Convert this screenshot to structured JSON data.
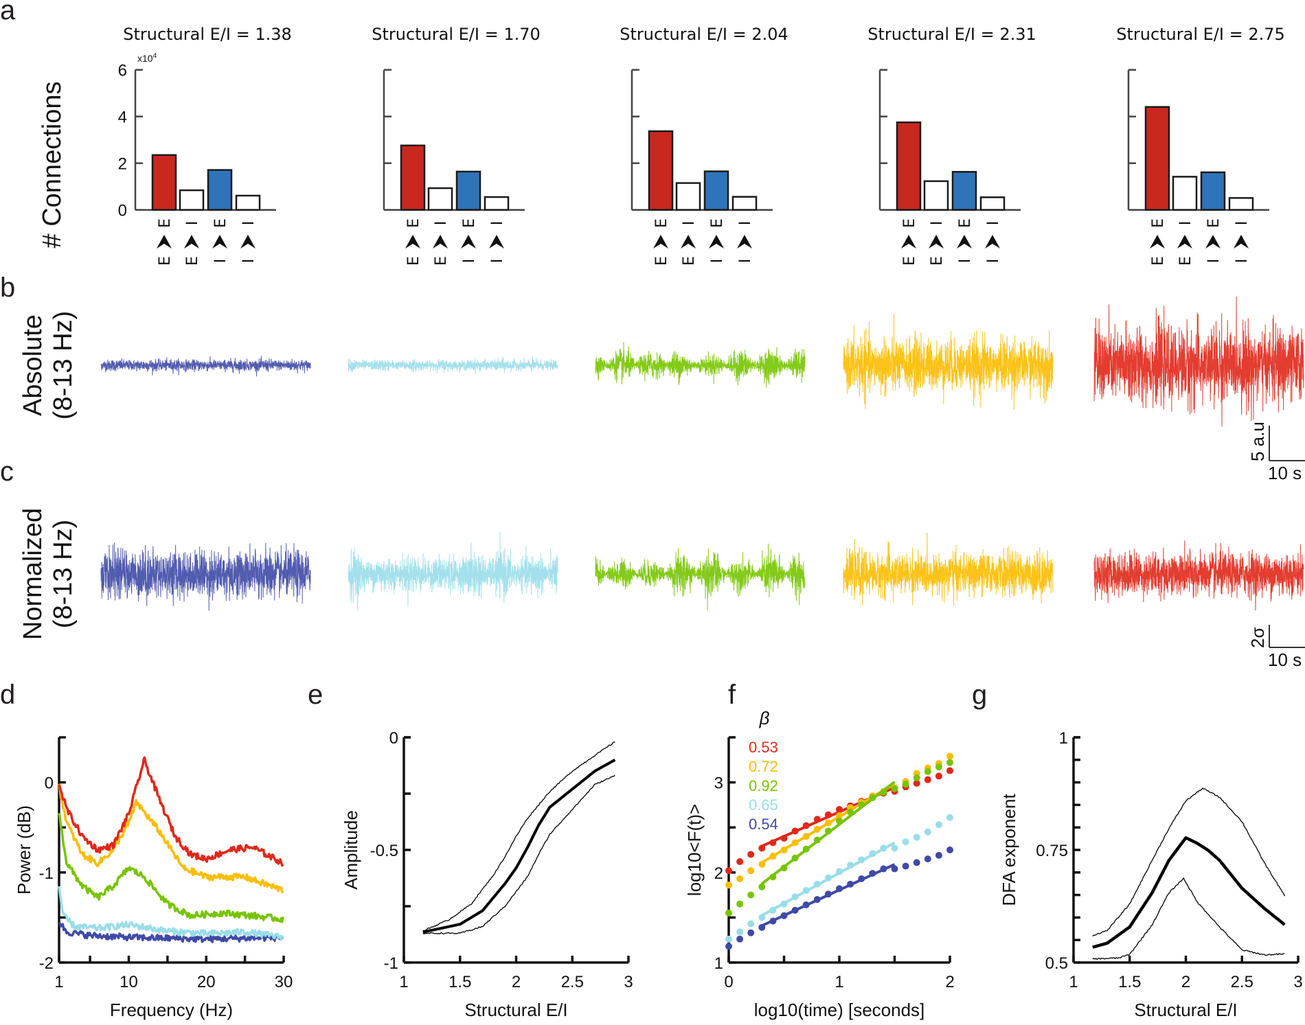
{
  "labels": {
    "panel_letters": [
      "a",
      "b",
      "c",
      "d",
      "e",
      "f",
      "g"
    ],
    "row_b": [
      "Absolute",
      "(8-13 Hz)"
    ],
    "row_c": [
      "Normalized",
      "(8-13 Hz)"
    ],
    "scalebar_b": {
      "vertical": "5 a.u",
      "horizontal": "10 s"
    },
    "scalebar_c": {
      "vertical": "2σ",
      "horizontal": "10 s"
    }
  },
  "colors": {
    "excitatory": "#c8281e",
    "inhibitory": "#2f73b8",
    "other": "#ffffff",
    "series": [
      "#3f4aa6",
      "#99dde9",
      "#77c400",
      "#fbbd00",
      "#e0281a"
    ]
  },
  "chart_data": [
    {
      "id": "a",
      "type": "bar",
      "ylabel": "# Connections",
      "yexponent": "x10",
      "yexponent_power": "4",
      "ylim": [
        0,
        6
      ],
      "yticks": [
        "0",
        "2",
        "4",
        "6"
      ],
      "categories": [
        {
          "from": "E",
          "to": "E"
        },
        {
          "from": "E",
          "to": "I"
        },
        {
          "from": "I",
          "to": "E"
        },
        {
          "from": "I",
          "to": "I"
        }
      ],
      "category_colors": [
        "excitatory",
        "other",
        "inhibitory",
        "other"
      ],
      "subplots": [
        {
          "title": "Structural E/I = 1.38",
          "values": [
            2.35,
            0.84,
            1.71,
            0.61
          ]
        },
        {
          "title": "Structural E/I = 1.70",
          "values": [
            2.76,
            0.93,
            1.64,
            0.55
          ]
        },
        {
          "title": "Structural E/I = 2.04",
          "values": [
            3.37,
            1.15,
            1.65,
            0.56
          ]
        },
        {
          "title": "Structural E/I = 2.31",
          "values": [
            3.75,
            1.23,
            1.63,
            0.54
          ]
        },
        {
          "title": "Structural E/I = 2.75",
          "values": [
            4.41,
            1.42,
            1.61,
            0.51
          ]
        }
      ]
    },
    {
      "id": "b",
      "type": "line",
      "description": "Absolute alpha-band (8-13 Hz) amplitude traces, one per structural E/I",
      "series": [
        {
          "name": "E/I 1.38",
          "color_index": 0,
          "amplitude": 0.9,
          "modulation": 0.15
        },
        {
          "name": "E/I 1.70",
          "color_index": 1,
          "amplitude": 0.9,
          "modulation": 0.35
        },
        {
          "name": "E/I 2.04",
          "color_index": 2,
          "amplitude": 2.2,
          "modulation": 0.8
        },
        {
          "name": "E/I 2.31",
          "color_index": 3,
          "amplitude": 4.5,
          "modulation": 0.3
        },
        {
          "name": "E/I 2.75",
          "color_index": 4,
          "amplitude": 6.0,
          "modulation": 0.2
        }
      ],
      "scale_bar": {
        "vertical": 5,
        "vertical_unit": "a.u",
        "horizontal": 10,
        "horizontal_unit": "s"
      }
    },
    {
      "id": "c",
      "type": "line",
      "description": "Normalized alpha-band (8-13 Hz) traces",
      "series": [
        {
          "name": "E/I 1.38",
          "color_index": 0,
          "amplitude": 2.5,
          "modulation": 0.2
        },
        {
          "name": "E/I 1.70",
          "color_index": 1,
          "amplitude": 2.2,
          "modulation": 0.5
        },
        {
          "name": "E/I 2.04",
          "color_index": 2,
          "amplitude": 2.0,
          "modulation": 0.9
        },
        {
          "name": "E/I 2.31",
          "color_index": 3,
          "amplitude": 2.3,
          "modulation": 0.3
        },
        {
          "name": "E/I 2.75",
          "color_index": 4,
          "amplitude": 2.3,
          "modulation": 0.2
        }
      ],
      "scale_bar": {
        "vertical": 2,
        "vertical_unit": "σ",
        "horizontal": 10,
        "horizontal_unit": "s"
      }
    },
    {
      "id": "d",
      "type": "line",
      "xlabel": "Frequency (Hz)",
      "ylabel": "Power (dB)",
      "xlim": [
        1,
        30
      ],
      "ylim": [
        -2,
        0.5
      ],
      "xticks": [
        1,
        10,
        20,
        30
      ],
      "xminor": [
        5,
        15,
        25
      ],
      "yticks": [
        -2,
        -1,
        0
      ],
      "yminor": [
        -1.5,
        -0.5
      ],
      "series": [
        {
          "name": "E/I 1.38",
          "color_index": 0,
          "x": [
            1,
            2,
            5,
            10,
            15,
            20,
            25,
            30
          ],
          "y": [
            -1.55,
            -1.66,
            -1.7,
            -1.72,
            -1.73,
            -1.74,
            -1.73,
            -1.72
          ]
        },
        {
          "name": "E/I 1.70",
          "color_index": 1,
          "x": [
            1,
            1.5,
            3,
            6,
            10,
            15,
            20,
            25,
            30
          ],
          "y": [
            -1.15,
            -1.48,
            -1.6,
            -1.62,
            -1.58,
            -1.65,
            -1.68,
            -1.66,
            -1.72
          ]
        },
        {
          "name": "E/I 2.04",
          "color_index": 2,
          "x": [
            1,
            2,
            4,
            6,
            8,
            10,
            12,
            15,
            18,
            22,
            26,
            30
          ],
          "y": [
            -0.35,
            -0.9,
            -1.15,
            -1.28,
            -1.15,
            -0.95,
            -1.05,
            -1.35,
            -1.48,
            -1.45,
            -1.48,
            -1.52
          ]
        },
        {
          "name": "E/I 2.31",
          "color_index": 3,
          "x": [
            1,
            2,
            4,
            6,
            8,
            10,
            11,
            14,
            17,
            20,
            25,
            30
          ],
          "y": [
            -0.05,
            -0.45,
            -0.8,
            -0.9,
            -0.75,
            -0.45,
            -0.22,
            -0.55,
            -0.95,
            -1.05,
            -1.05,
            -1.2
          ]
        },
        {
          "name": "E/I 2.75",
          "color_index": 4,
          "x": [
            1,
            2,
            4,
            6,
            8,
            10,
            12,
            14,
            16,
            18,
            20,
            23,
            26,
            30
          ],
          "y": [
            -0.02,
            -0.3,
            -0.6,
            -0.75,
            -0.7,
            -0.35,
            0.25,
            -0.2,
            -0.6,
            -0.8,
            -0.85,
            -0.75,
            -0.72,
            -0.9
          ]
        }
      ]
    },
    {
      "id": "e",
      "type": "line",
      "xlabel": "Structural E/I",
      "ylabel": "Amplitude",
      "xlim": [
        1,
        3
      ],
      "ylim": [
        -1,
        0
      ],
      "xticks": [
        "1",
        "1.5",
        "2",
        "2.5",
        "3"
      ],
      "yticks": [
        "-1",
        "-0.5",
        "0"
      ],
      "yminor": [
        -0.75,
        -0.25
      ],
      "series": [
        {
          "name": "mean",
          "x": [
            1.17,
            1.5,
            1.7,
            1.9,
            2.0,
            2.1,
            2.2,
            2.3,
            2.5,
            2.7,
            2.88
          ],
          "y": [
            -0.865,
            -0.83,
            -0.77,
            -0.65,
            -0.58,
            -0.49,
            -0.39,
            -0.31,
            -0.23,
            -0.15,
            -0.1
          ]
        },
        {
          "name": "upper",
          "x": [
            1.17,
            1.4,
            1.6,
            1.8,
            1.9,
            2.0,
            2.1,
            2.3,
            2.5,
            2.7,
            2.88
          ],
          "y": [
            -0.86,
            -0.81,
            -0.74,
            -0.61,
            -0.53,
            -0.44,
            -0.36,
            -0.24,
            -0.15,
            -0.08,
            -0.02
          ]
        },
        {
          "name": "lower",
          "x": [
            1.17,
            1.5,
            1.7,
            1.9,
            2.1,
            2.2,
            2.3,
            2.5,
            2.7,
            2.88
          ],
          "y": [
            -0.87,
            -0.87,
            -0.84,
            -0.75,
            -0.62,
            -0.52,
            -0.43,
            -0.32,
            -0.21,
            -0.17
          ]
        }
      ]
    },
    {
      "id": "f",
      "type": "scatter",
      "xlabel": "log10(time) [seconds]",
      "ylabel": "log10<F(t)>",
      "xlim": [
        0,
        2
      ],
      "ylim": [
        1,
        3.5
      ],
      "xticks": [
        "0",
        "1",
        "2"
      ],
      "xminor": [
        0.5,
        1.5
      ],
      "yticks": [
        "1",
        "2",
        "3"
      ],
      "yminor": [
        1.5,
        2.5
      ],
      "legend_title": "β",
      "fit_range": [
        0.3,
        1.5
      ],
      "x": [
        0,
        0.1,
        0.2,
        0.3,
        0.4,
        0.5,
        0.6,
        0.7,
        0.8,
        0.9,
        1.0,
        1.1,
        1.2,
        1.3,
        1.4,
        1.5,
        1.6,
        1.7,
        1.8,
        1.9,
        2.0
      ],
      "series": [
        {
          "name": "E/I 2.75",
          "beta": "0.53",
          "color_index": 4,
          "y": [
            2.02,
            2.12,
            2.2,
            2.27,
            2.33,
            2.38,
            2.46,
            2.52,
            2.59,
            2.64,
            2.7,
            2.74,
            2.79,
            2.83,
            2.88,
            2.9,
            2.95,
            2.99,
            3.03,
            3.07,
            3.13
          ]
        },
        {
          "name": "E/I 2.31",
          "beta": "0.72",
          "color_index": 3,
          "y": [
            1.86,
            1.93,
            2.02,
            2.09,
            2.18,
            2.25,
            2.33,
            2.4,
            2.48,
            2.55,
            2.63,
            2.72,
            2.78,
            2.85,
            2.9,
            2.94,
            3.01,
            3.1,
            3.16,
            3.21,
            3.29
          ]
        },
        {
          "name": "E/I 2.04",
          "beta": "0.92",
          "color_index": 2,
          "y": [
            1.55,
            1.65,
            1.75,
            1.84,
            1.95,
            2.05,
            2.16,
            2.26,
            2.36,
            2.46,
            2.57,
            2.67,
            2.75,
            2.83,
            2.89,
            2.93,
            2.98,
            3.05,
            3.12,
            3.17,
            3.22
          ]
        },
        {
          "name": "E/I 1.70",
          "beta": "0.65",
          "color_index": 1,
          "y": [
            1.26,
            1.34,
            1.43,
            1.5,
            1.58,
            1.65,
            1.73,
            1.8,
            1.87,
            1.94,
            2.01,
            2.08,
            2.14,
            2.21,
            2.27,
            2.27,
            2.34,
            2.39,
            2.45,
            2.53,
            2.61
          ]
        },
        {
          "name": "E/I 1.38",
          "beta": "0.54",
          "color_index": 0,
          "y": [
            1.18,
            1.26,
            1.33,
            1.39,
            1.46,
            1.52,
            1.58,
            1.64,
            1.7,
            1.76,
            1.82,
            1.87,
            1.93,
            1.99,
            2.04,
            2.04,
            2.07,
            2.11,
            2.15,
            2.19,
            2.25
          ]
        }
      ]
    },
    {
      "id": "g",
      "type": "line",
      "xlabel": "Structural E/I",
      "ylabel": "DFA exponent",
      "xlim": [
        1,
        3
      ],
      "ylim": [
        0.5,
        1
      ],
      "xticks": [
        "1",
        "1.5",
        "2",
        "2.5",
        "3"
      ],
      "yticks": [
        "0.5",
        "0.75",
        "1"
      ],
      "yminor_step": 0.05,
      "series": [
        {
          "name": "mean",
          "x": [
            1.17,
            1.3,
            1.5,
            1.7,
            1.85,
            2.0,
            2.1,
            2.2,
            2.3,
            2.5,
            2.7,
            2.88
          ],
          "y": [
            0.534,
            0.543,
            0.579,
            0.655,
            0.727,
            0.777,
            0.765,
            0.749,
            0.727,
            0.665,
            0.62,
            0.584
          ]
        },
        {
          "name": "upper",
          "x": [
            1.17,
            1.3,
            1.5,
            1.7,
            1.85,
            2.0,
            2.15,
            2.3,
            2.5,
            2.7,
            2.88
          ],
          "y": [
            0.56,
            0.571,
            0.63,
            0.727,
            0.798,
            0.859,
            0.887,
            0.867,
            0.813,
            0.721,
            0.648
          ]
        },
        {
          "name": "lower",
          "x": [
            1.17,
            1.4,
            1.5,
            1.7,
            1.85,
            1.98,
            2.1,
            2.3,
            2.5,
            2.7,
            2.88
          ],
          "y": [
            0.508,
            0.51,
            0.518,
            0.584,
            0.655,
            0.687,
            0.635,
            0.579,
            0.528,
            0.517,
            0.519
          ]
        }
      ]
    }
  ]
}
